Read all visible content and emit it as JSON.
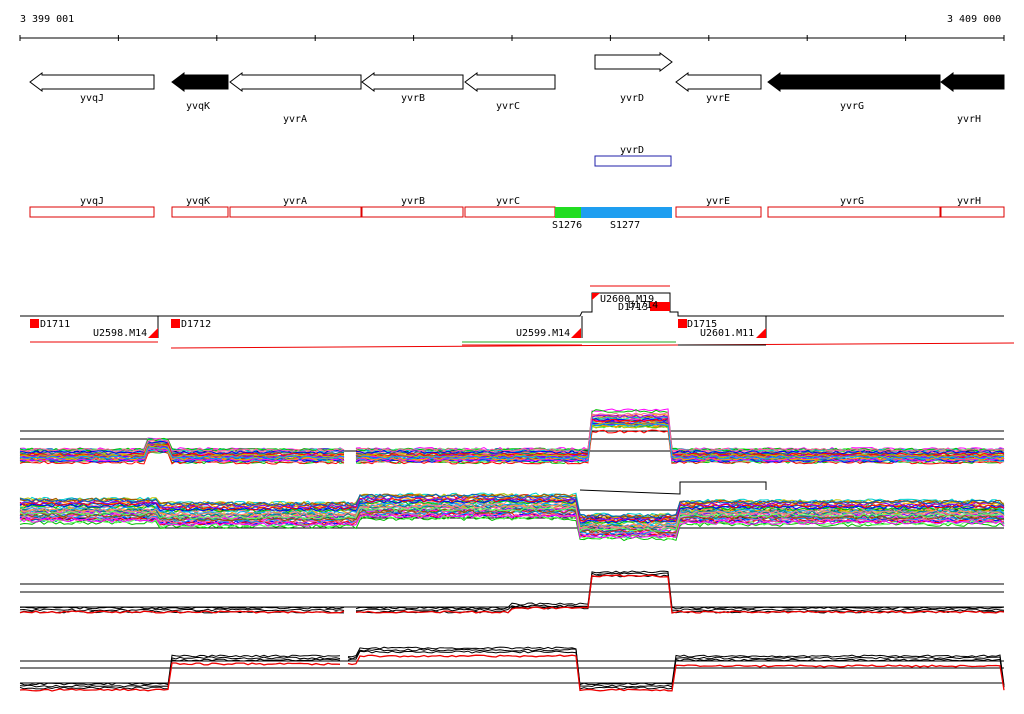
{
  "coords": {
    "start": "3 399 001",
    "end": "3 409 000"
  },
  "genes_forward": [
    {
      "name": "yvrD",
      "color": "#ffffff"
    }
  ],
  "genes_reverse": [
    {
      "name": "yvqJ",
      "color": "#ffffff"
    },
    {
      "name": "yvqK",
      "color": "#000000"
    },
    {
      "name": "yvrA",
      "color": "#ffffff"
    },
    {
      "name": "yvrB",
      "color": "#ffffff"
    },
    {
      "name": "yvrC",
      "color": "#ffffff"
    },
    {
      "name": "yvrE",
      "color": "#ffffff"
    },
    {
      "name": "yvrG",
      "color": "#000000"
    },
    {
      "name": "yvrH",
      "color": "#000000"
    }
  ],
  "blue_feature": {
    "name": "yvrD",
    "color": "#1f1fa8"
  },
  "red_features": [
    "yvqJ",
    "yvqK",
    "yvrA",
    "yvrB",
    "yvrC",
    "yvrE",
    "yvrG",
    "yvrH"
  ],
  "segments": [
    {
      "name": "S1276",
      "color": "#22dd22"
    },
    {
      "name": "S1277",
      "color": "#1e9ef0"
    }
  ],
  "transcription": {
    "down_labels": [
      "D1711",
      "D1712",
      "D1715",
      "D1713",
      "D1714"
    ],
    "up_labels": [
      "U2598.M14",
      "U2599.M14",
      "U2600.M19",
      "U2601.M11"
    ],
    "accent": "#ff0000"
  },
  "colors": {
    "black": "#000000",
    "red": "#e00000",
    "green": "#22aa22"
  }
}
